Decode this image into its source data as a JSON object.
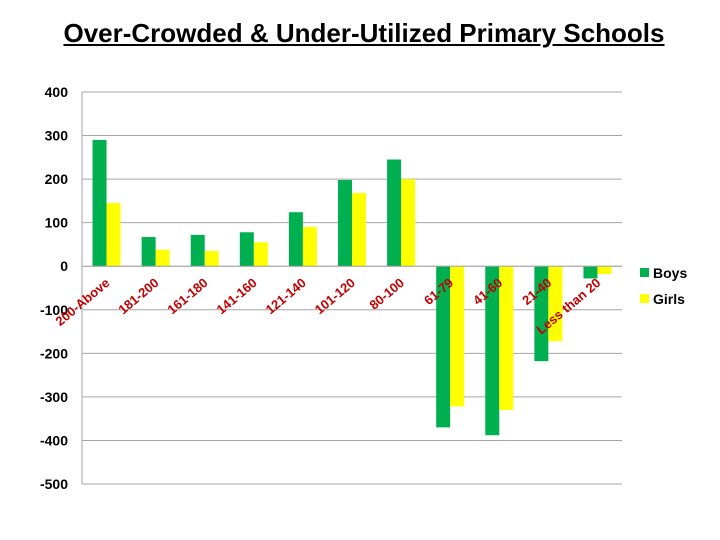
{
  "title": "Over-Crowded & Under-Utilized Primary Schools",
  "colors": {
    "Boys": "#00b050",
    "Girls": "#ffff00",
    "category_label": "#c00000",
    "grid": "#a6a6a6"
  },
  "chart_data": {
    "type": "bar",
    "categories": [
      "200-Above",
      "181-200",
      "161-180",
      "141-160",
      "121-140",
      "101-120",
      "80-100",
      "61-79",
      "41-60",
      "21-40",
      "Less than 20"
    ],
    "series": [
      {
        "name": "Boys",
        "values": [
          290,
          67,
          72,
          78,
          124,
          198,
          245,
          -370,
          -388,
          -218,
          -28
        ]
      },
      {
        "name": "Girls",
        "values": [
          145,
          38,
          35,
          55,
          90,
          168,
          200,
          -322,
          -330,
          -172,
          -18
        ]
      }
    ],
    "ylim": [
      -500,
      400
    ],
    "yticks": [
      400,
      300,
      200,
      100,
      0,
      -100,
      -200,
      -300,
      -400,
      -500
    ],
    "ytick_labels": [
      "400",
      "300",
      "200",
      "100",
      "0",
      "-100",
      "-200",
      "-300",
      "-400",
      "-500"
    ],
    "grid": true,
    "legend_position": "right"
  }
}
